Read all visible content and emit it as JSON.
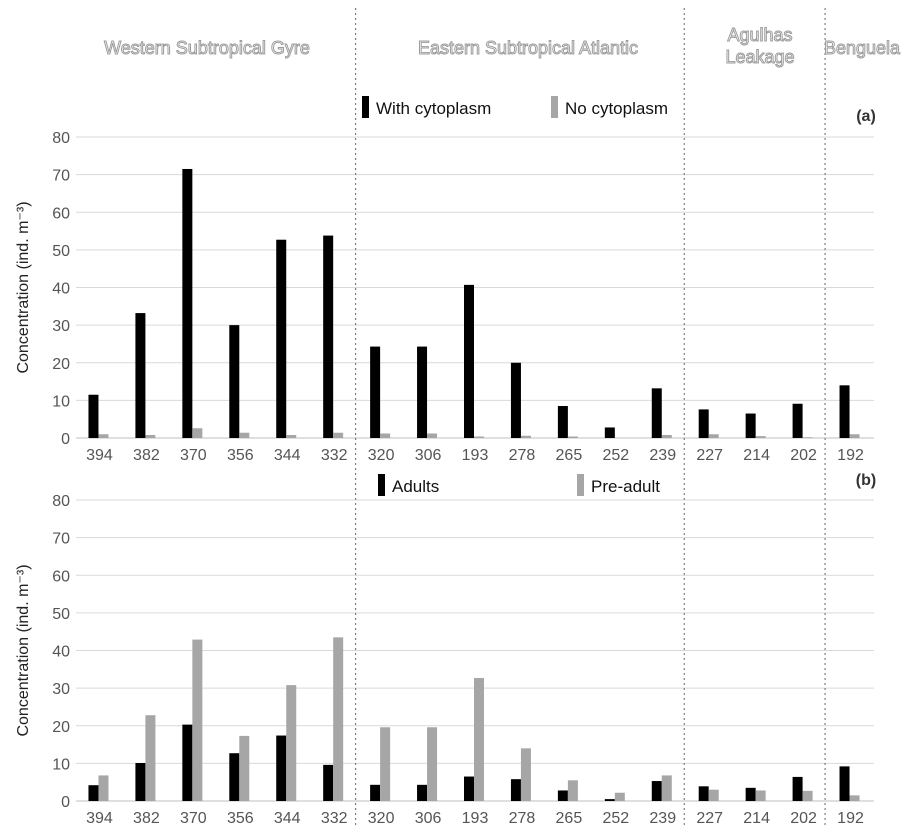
{
  "regions": [
    {
      "label_lines": [
        "Western Subtropical Gyre"
      ]
    },
    {
      "label_lines": [
        "Eastern Subtropical Atlantic"
      ]
    },
    {
      "label_lines": [
        "Agulhas",
        "Leakage"
      ]
    },
    {
      "label_lines": [
        "Benguela"
      ]
    }
  ],
  "colors": {
    "black_series": "#000000",
    "grey_series": "#a6a6a6",
    "grid": "#d9d9d9",
    "divider": "#666666"
  },
  "chart_data": [
    {
      "type": "bar",
      "panel": "(a)",
      "ylabel": "Concentration (ind. m⁻³)",
      "ylim": [
        0,
        80
      ],
      "yticks": [
        0,
        10,
        20,
        30,
        40,
        50,
        60,
        70,
        80
      ],
      "grid": true,
      "legend_position": "top",
      "categories": [
        "394",
        "382",
        "370",
        "356",
        "344",
        "332",
        "320",
        "306",
        "193",
        "278",
        "265",
        "252",
        "239",
        "227",
        "214",
        "202",
        "192"
      ],
      "series": [
        {
          "name": "With cytoplasm",
          "color": "#000000",
          "values": [
            11.5,
            33.2,
            71.5,
            30,
            52.7,
            53.8,
            24.3,
            24.3,
            40.7,
            20,
            8.5,
            2.8,
            13.2,
            7.6,
            6.5,
            9.1,
            14
          ]
        },
        {
          "name": "No cytoplasm",
          "color": "#a6a6a6",
          "values": [
            1,
            0.8,
            2.6,
            1.4,
            0.8,
            1.4,
            1.2,
            1.2,
            0.4,
            0.6,
            0.4,
            0,
            0.8,
            1,
            0.5,
            0.2,
            1
          ]
        }
      ]
    },
    {
      "type": "bar",
      "panel": "(b)",
      "ylabel": "Concentration (ind. m⁻³)",
      "ylim": [
        0,
        80
      ],
      "yticks": [
        0,
        10,
        20,
        30,
        40,
        50,
        60,
        70,
        80
      ],
      "grid": true,
      "legend_position": "top",
      "categories": [
        "394",
        "382",
        "370",
        "356",
        "344",
        "332",
        "320",
        "306",
        "193",
        "278",
        "265",
        "252",
        "239",
        "227",
        "214",
        "202",
        "192"
      ],
      "series": [
        {
          "name": "Adults",
          "color": "#000000",
          "values": [
            4.2,
            10.1,
            20.3,
            12.7,
            17.4,
            9.6,
            4.3,
            4.3,
            6.5,
            5.8,
            2.8,
            0.5,
            5.3,
            3.9,
            3.5,
            6.4,
            9.2
          ]
        },
        {
          "name": "Pre-adult",
          "color": "#a6a6a6",
          "values": [
            6.8,
            22.8,
            42.9,
            17.3,
            30.8,
            43.5,
            19.6,
            19.6,
            32.7,
            14,
            5.5,
            2.2,
            6.8,
            3,
            2.8,
            2.7,
            1.5
          ]
        }
      ]
    }
  ]
}
